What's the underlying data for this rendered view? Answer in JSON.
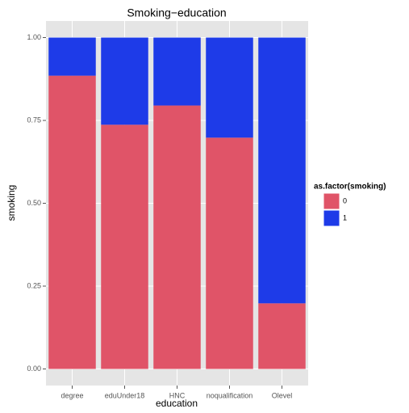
{
  "chart_data": {
    "type": "stacked_bar",
    "title": "Smoking−education",
    "x_label": "education",
    "y_label": "smoking",
    "categories": [
      "degree",
      "eduUnder18",
      "HNC",
      "noqualification",
      "Olevel"
    ],
    "series": [
      {
        "name": "0",
        "color": "#e05468",
        "values": [
          0.885,
          0.737,
          0.795,
          0.698,
          0.198
        ]
      },
      {
        "name": "1",
        "color": "#1e3be8",
        "values": [
          0.115,
          0.263,
          0.205,
          0.302,
          0.802
        ]
      }
    ],
    "legend_title": "as.factor(smoking)",
    "legend_position": "right",
    "ylim": [
      -0.05,
      1.05
    ],
    "yticks": [
      {
        "value": 0,
        "label": "0.00"
      },
      {
        "value": 0.25,
        "label": "0.25"
      },
      {
        "value": 0.5,
        "label": "0.50"
      },
      {
        "value": 0.75,
        "label": "0.75"
      },
      {
        "value": 1,
        "label": "1.00"
      }
    ],
    "grid": true
  }
}
